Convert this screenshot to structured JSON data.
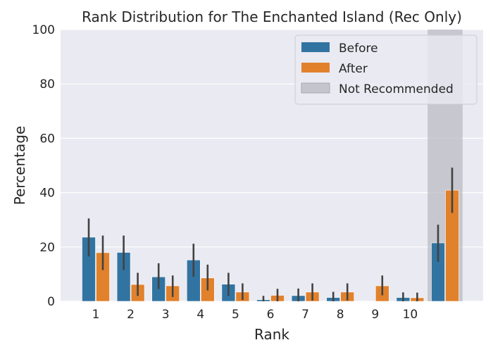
{
  "chart_data": {
    "type": "bar",
    "title": "Rank Distribution for The Enchanted Island (Rec Only)",
    "xlabel": "Rank",
    "ylabel": "Percentage",
    "ylim": [
      0,
      100
    ],
    "yticks": [
      0,
      20,
      40,
      60,
      80,
      100
    ],
    "categories": [
      "1",
      "2",
      "3",
      "4",
      "5",
      "6",
      "7",
      "8",
      "9",
      "10",
      ""
    ],
    "series": [
      {
        "name": "Before",
        "color": "#3274a1",
        "values": [
          23.6,
          18.0,
          9.0,
          15.2,
          6.3,
          0.6,
          2.1,
          1.4,
          0,
          1.4,
          21.5
        ],
        "ci_low": [
          16.5,
          11.5,
          4.5,
          9.0,
          2.0,
          0,
          0,
          0,
          0,
          0,
          14.5
        ],
        "ci_high": [
          30.5,
          24.2,
          14.0,
          21.2,
          10.5,
          2.0,
          4.7,
          3.5,
          0,
          3.3,
          28.2
        ]
      },
      {
        "name": "After",
        "color": "#e1812c",
        "values": [
          17.9,
          6.2,
          5.7,
          8.6,
          3.4,
          2.2,
          3.4,
          3.4,
          5.7,
          1.3,
          40.9
        ],
        "ci_low": [
          11.5,
          2.0,
          1.6,
          4.0,
          0.5,
          0,
          0.3,
          0.3,
          2.2,
          0,
          32.5
        ],
        "ci_high": [
          24.2,
          10.5,
          9.5,
          13.5,
          6.6,
          4.6,
          6.6,
          6.6,
          9.5,
          3.2,
          49.2
        ]
      }
    ],
    "shaded_region": {
      "name": "Not Recommended",
      "color": "#b8b8c0",
      "category_index": 10
    },
    "legend": {
      "position": "top-right",
      "entries": [
        "Before",
        "After",
        "Not Recommended"
      ]
    },
    "grid": true,
    "background": "#eaeaf2"
  }
}
